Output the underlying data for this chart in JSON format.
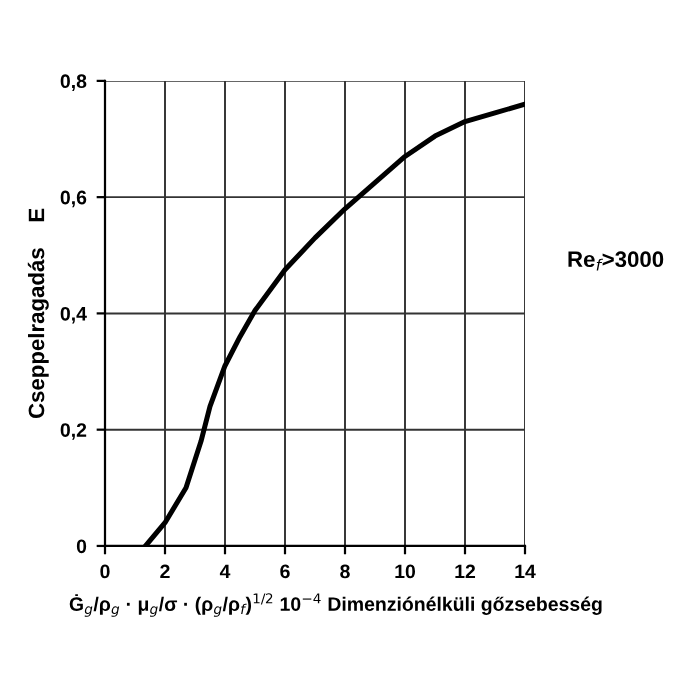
{
  "chart_data": {
    "type": "line",
    "xlabel": "Ġ$_{g}$/ρ$_{g}$ · μ$_{g}$/σ · (ρ$_{g}$/ρ$_{f}$)$^{1/2}$ 10$^{−4}$ Dimenziónélküli gőzsebesség",
    "ylabel": "Cseppelragadás    E",
    "annotations": [
      "Re$_{f}$>3000"
    ],
    "xlim": [
      0,
      14
    ],
    "ylim": [
      0,
      0.8
    ],
    "xticks": [
      0,
      2,
      4,
      6,
      8,
      10,
      12,
      14
    ],
    "yticks": [
      {
        "value": 0,
        "label": "0"
      },
      {
        "value": 0.2,
        "label": "0,2"
      },
      {
        "value": 0.4,
        "label": "0,4"
      },
      {
        "value": 0.6,
        "label": "0,6"
      },
      {
        "value": 0.8,
        "label": "0,8"
      }
    ],
    "grid": true,
    "marker": "none",
    "line_style": "solid",
    "series": [
      {
        "color": "#000000",
        "x": [
          1.35,
          2,
          2.7,
          3.2,
          3.5,
          4,
          4.5,
          5,
          6,
          7,
          8,
          9,
          10,
          11,
          12,
          13,
          14
        ],
        "values": [
          0,
          0.04,
          0.1,
          0.18,
          0.24,
          0.31,
          0.36,
          0.405,
          0.475,
          0.53,
          0.58,
          0.625,
          0.67,
          0.705,
          0.73,
          0.745,
          0.76
        ]
      }
    ]
  }
}
